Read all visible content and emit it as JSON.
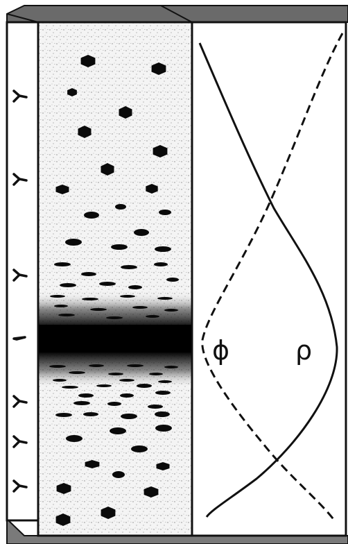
{
  "labels": {
    "phi": "ϕ",
    "rho": "ρ"
  },
  "colors": {
    "outline": "#111111",
    "panel_top": "#6a6a6a",
    "panel_bottom": "#7a7a7a",
    "stipple": "#9a9a9a",
    "particle": "#0a0a0a",
    "band": "#050505"
  },
  "icons": {
    "side_markers": "y-shaped-fiber-icon",
    "particles": "hexagonal-particle-icon"
  }
}
